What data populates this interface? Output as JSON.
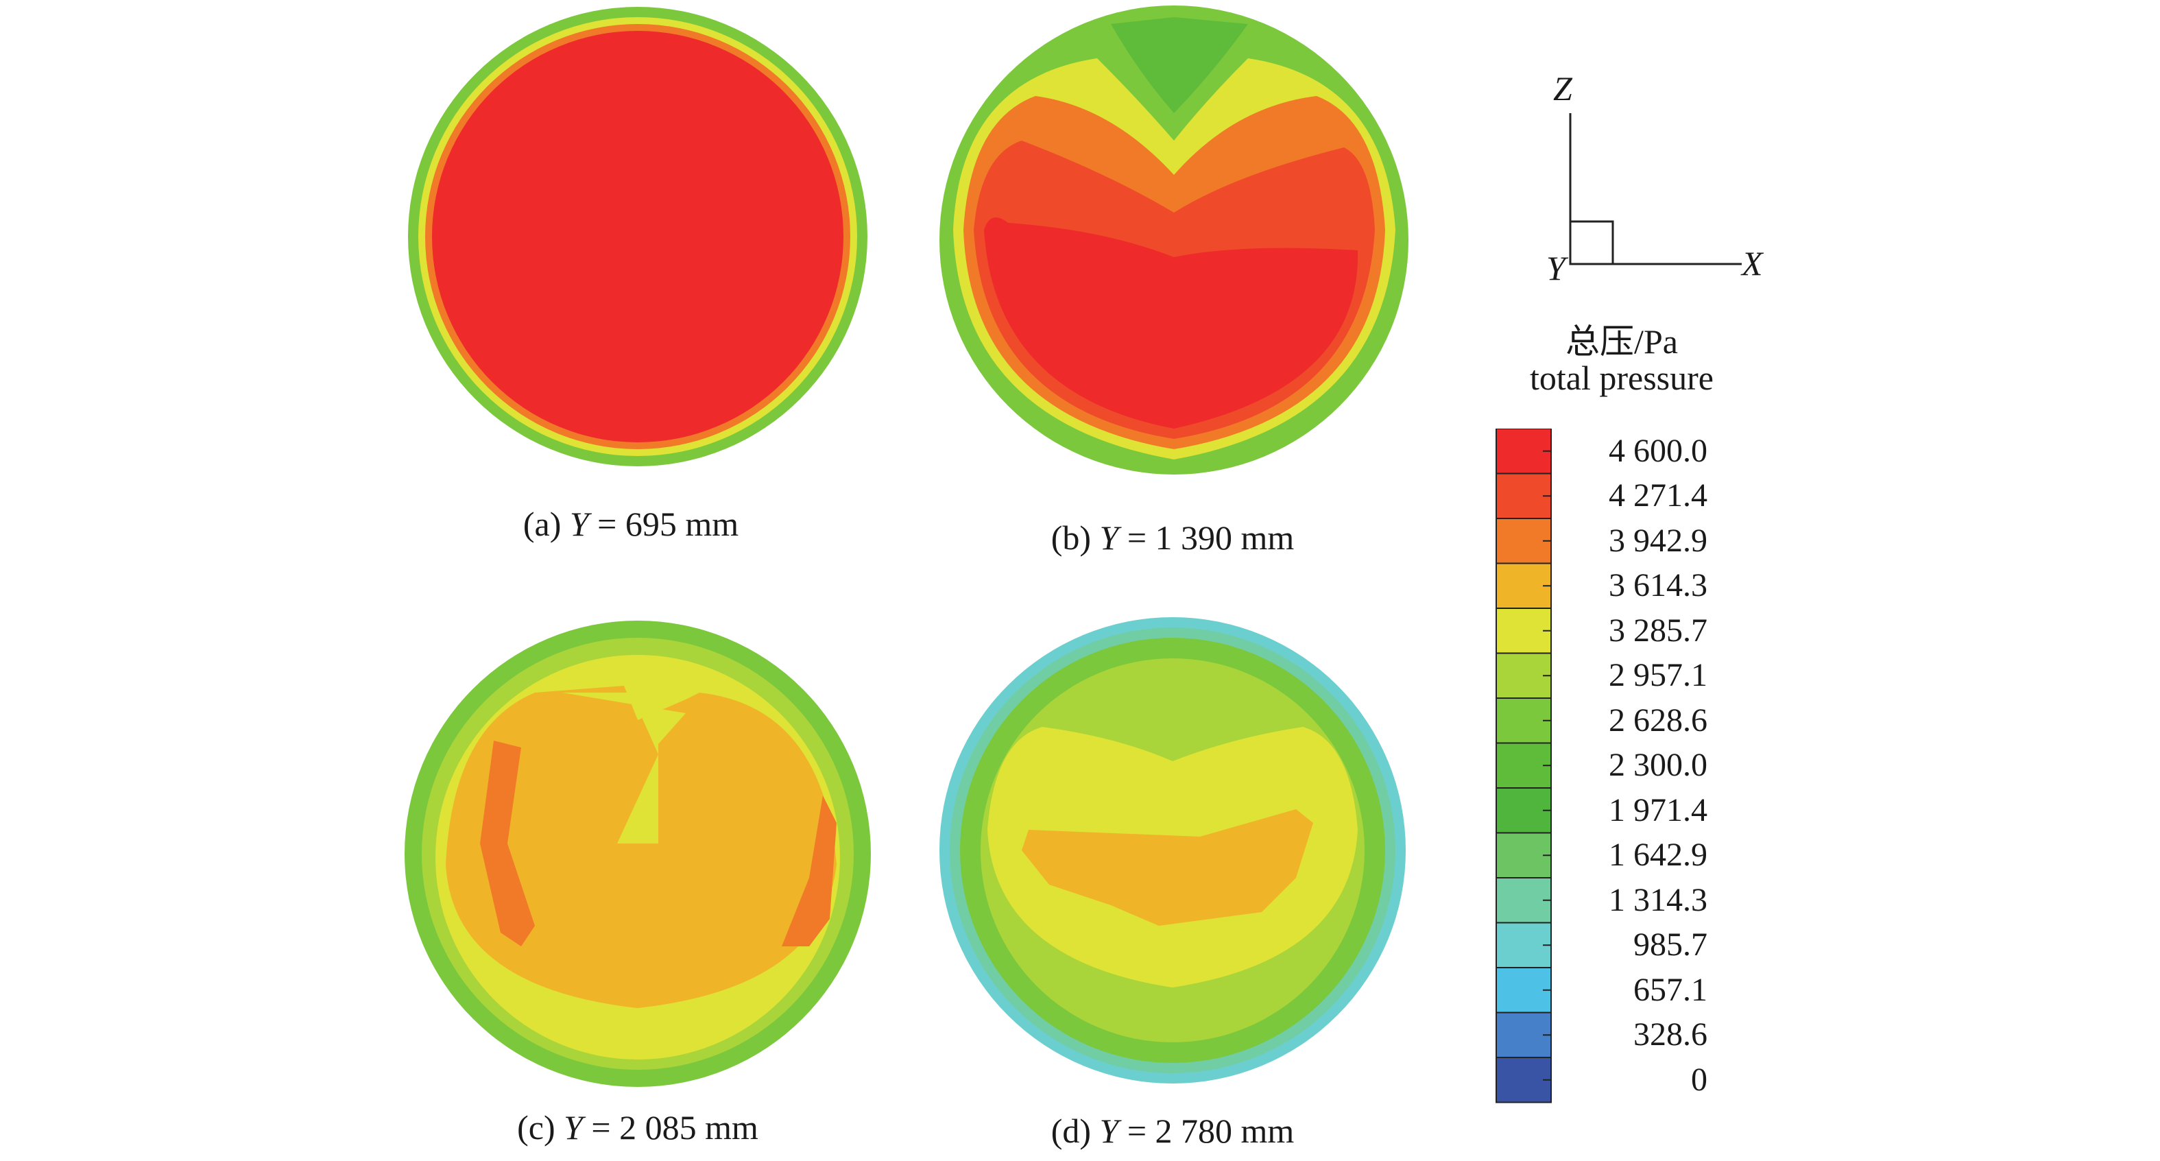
{
  "panels": [
    {
      "id": "a",
      "prefix": "(a) ",
      "var": "Y",
      "eq": " = 695 mm"
    },
    {
      "id": "b",
      "prefix": "(b) ",
      "var": "Y",
      "eq": " = 1 390 mm"
    },
    {
      "id": "c",
      "prefix": "(c) ",
      "var": "Y",
      "eq": " = 2 085 mm"
    },
    {
      "id": "d",
      "prefix": "(d) ",
      "var": "Y",
      "eq": " = 2 780 mm"
    }
  ],
  "axes": {
    "z": "Z",
    "x": "X",
    "y": "Y"
  },
  "legend": {
    "title_cn": "总压/Pa",
    "title_en": "total pressure",
    "ticks": [
      "4 600.0",
      "4 271.4",
      "3 942.9",
      "3 614.3",
      "3 285.7",
      "2 957.1",
      "2 628.6",
      "2 300.0",
      "1 971.4",
      "1 642.9",
      "1 314.3",
      "985.7",
      "657.1",
      "328.6",
      "0"
    ],
    "colors": [
      "#ee2a2b",
      "#ef4a2a",
      "#f07a28",
      "#f0b429",
      "#dfe335",
      "#a9d53a",
      "#7cc83c",
      "#5fbc3a",
      "#4fb53c",
      "#6cc463",
      "#71cda4",
      "#6ccfcf",
      "#4ec1e6",
      "#4580c8",
      "#3953a5"
    ]
  }
}
